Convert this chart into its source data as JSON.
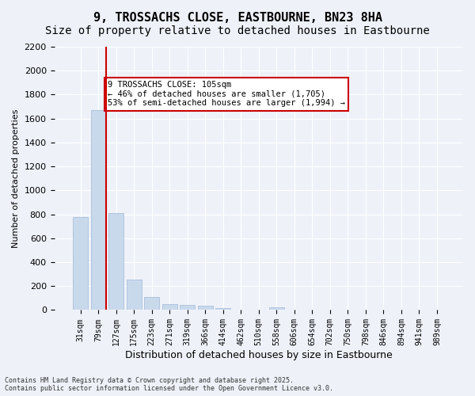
{
  "title_line1": "9, TROSSACHS CLOSE, EASTBOURNE, BN23 8HA",
  "title_line2": "Size of property relative to detached houses in Eastbourne",
  "xlabel": "Distribution of detached houses by size in Eastbourne",
  "ylabel": "Number of detached properties",
  "categories": [
    "31sqm",
    "79sqm",
    "127sqm",
    "175sqm",
    "223sqm",
    "271sqm",
    "319sqm",
    "366sqm",
    "414sqm",
    "462sqm",
    "510sqm",
    "558sqm",
    "606sqm",
    "654sqm",
    "702sqm",
    "750sqm",
    "798sqm",
    "846sqm",
    "894sqm",
    "941sqm",
    "989sqm"
  ],
  "values": [
    780,
    1670,
    810,
    255,
    110,
    50,
    40,
    35,
    18,
    3,
    0,
    25,
    0,
    0,
    0,
    0,
    0,
    0,
    0,
    0,
    0
  ],
  "bar_color": "#c9d9ec",
  "bar_edge_color": "#a0b8d8",
  "vline_x": 1,
  "vline_color": "#cc0000",
  "annotation_text": "9 TROSSACHS CLOSE: 105sqm\n← 46% of detached houses are smaller (1,705)\n53% of semi-detached houses are larger (1,994) →",
  "annotation_box_color": "#cc0000",
  "ylim": [
    0,
    2200
  ],
  "yticks": [
    0,
    200,
    400,
    600,
    800,
    1000,
    1200,
    1400,
    1600,
    1800,
    2000,
    2200
  ],
  "bg_color": "#eef2f8",
  "plot_bg_color": "#eef2f8",
  "grid_color": "#ffffff",
  "footnote": "Contains HM Land Registry data © Crown copyright and database right 2025.\nContains public sector information licensed under the Open Government Licence v3.0.",
  "title_fontsize": 11,
  "subtitle_fontsize": 10
}
